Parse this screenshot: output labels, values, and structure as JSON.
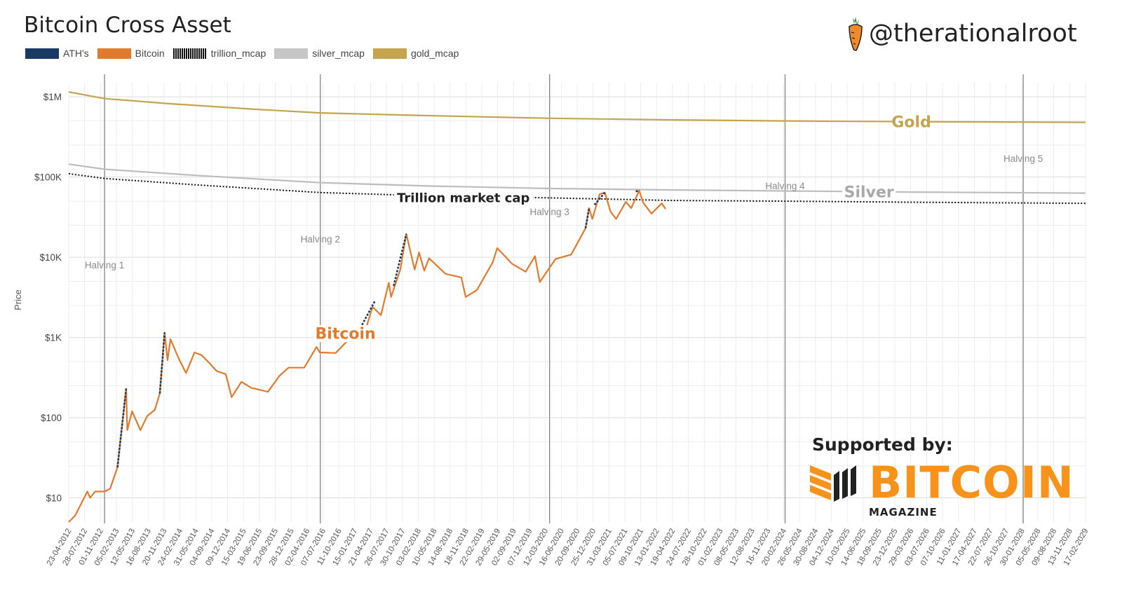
{
  "header": {
    "title": "Bitcoin Cross Asset",
    "handle": "@therationalroot"
  },
  "legend": [
    {
      "label": "ATH's",
      "color": "#1b3a63",
      "style": "solid"
    },
    {
      "label": "Bitcoin",
      "color": "#e07b2e",
      "style": "solid"
    },
    {
      "label": "trillion_mcap",
      "color": "#111111",
      "style": "dotted"
    },
    {
      "label": "silver_mcap",
      "color": "#c6c6c6",
      "style": "solid"
    },
    {
      "label": "gold_mcap",
      "color": "#c4a44e",
      "style": "solid"
    }
  ],
  "sponsor": {
    "supported_label": "Supported by:",
    "logo_word": "BITCOIN",
    "logo_sub": "MAGAZINE"
  },
  "colors": {
    "bitcoin": "#e07b2e",
    "ath": "#1b3a63",
    "gold": "#c4a44e",
    "silver": "#bdbdbd",
    "trillion": "#111111",
    "halving_line": "#8c8c8c",
    "grid": "#e8e8e8",
    "sponsor_orange": "#f7931a"
  },
  "chart_data": {
    "type": "line",
    "scale": "log",
    "ylabel": "Price",
    "ylim": [
      5,
      1500000
    ],
    "xlim": [
      "2012-04-23",
      "2029-05-01"
    ],
    "y_ticks": [
      {
        "value": 10,
        "label": "$10"
      },
      {
        "value": 100,
        "label": "$100"
      },
      {
        "value": 1000,
        "label": "$1K"
      },
      {
        "value": 10000,
        "label": "$10K"
      },
      {
        "value": 100000,
        "label": "$100K"
      },
      {
        "value": 1000000,
        "label": "$1M"
      }
    ],
    "x_tick_labels": [
      "23-04-2012",
      "28-07-2012",
      "01-11-2012",
      "05-02-2013",
      "12-05-2013",
      "16-08-2013",
      "20-11-2013",
      "24-02-2014",
      "31-05-2014",
      "04-09-2014",
      "09-12-2014",
      "15-03-2015",
      "19-06-2015",
      "23-09-2015",
      "28-12-2015",
      "02-04-2016",
      "07-07-2016",
      "11-10-2016",
      "15-01-2017",
      "21-04-2017",
      "26-07-2017",
      "30-10-2017",
      "03-02-2018",
      "10-05-2018",
      "14-08-2018",
      "18-11-2018",
      "22-02-2019",
      "29-05-2019",
      "02-09-2019",
      "07-12-2019",
      "12-03-2020",
      "16-06-2020",
      "20-09-2020",
      "25-12-2020",
      "31-03-2021",
      "05-07-2021",
      "09-10-2021",
      "13-01-2022",
      "19-04-2022",
      "24-07-2022",
      "28-10-2022",
      "01-02-2023",
      "08-05-2023",
      "12-08-2023",
      "16-11-2023",
      "20-02-2024",
      "26-05-2024",
      "30-08-2024",
      "04-12-2024",
      "10-03-2025",
      "14-06-2025",
      "18-09-2025",
      "23-12-2025",
      "29-03-2026",
      "03-07-2026",
      "07-10-2026",
      "11-01-2027",
      "17-04-2027",
      "22-07-2027",
      "26-10-2027",
      "30-01-2028",
      "05-05-2028",
      "09-08-2028",
      "13-11-2028",
      "17-02-2029"
    ],
    "halvings": [
      {
        "label": "Halving 1",
        "date": "2012-11-28"
      },
      {
        "label": "Halving 2",
        "date": "2016-07-09"
      },
      {
        "label": "Halving 3",
        "date": "2020-05-11"
      },
      {
        "label": "Halving 4",
        "date": "2024-04-20"
      },
      {
        "label": "Halving 5",
        "date": "2028-04-15"
      }
    ],
    "annotations": [
      {
        "text": "Gold",
        "series": "gold_mcap"
      },
      {
        "text": "Silver",
        "series": "silver_mcap"
      },
      {
        "text": "Trillion market cap",
        "series": "trillion_mcap"
      },
      {
        "text": "Bitcoin",
        "series": "Bitcoin"
      }
    ],
    "series": [
      {
        "name": "gold_mcap",
        "points": [
          [
            "2012-04-23",
            1150000
          ],
          [
            "2012-11-28",
            950000
          ],
          [
            "2014-01-01",
            820000
          ],
          [
            "2015-06-01",
            700000
          ],
          [
            "2016-07-09",
            630000
          ],
          [
            "2018-01-01",
            590000
          ],
          [
            "2020-05-11",
            540000
          ],
          [
            "2022-06-01",
            515000
          ],
          [
            "2024-04-20",
            500000
          ],
          [
            "2026-06-01",
            490000
          ],
          [
            "2029-05-01",
            480000
          ]
        ]
      },
      {
        "name": "silver_mcap",
        "points": [
          [
            "2012-04-23",
            145000
          ],
          [
            "2012-11-28",
            125000
          ],
          [
            "2014-06-01",
            105000
          ],
          [
            "2016-07-09",
            85000
          ],
          [
            "2018-06-01",
            77000
          ],
          [
            "2020-05-11",
            72000
          ],
          [
            "2022-06-01",
            69000
          ],
          [
            "2024-04-20",
            67000
          ],
          [
            "2026-06-01",
            65000
          ],
          [
            "2029-05-01",
            63000
          ]
        ]
      },
      {
        "name": "trillion_mcap",
        "points": [
          [
            "2012-04-23",
            110000
          ],
          [
            "2012-11-28",
            96000
          ],
          [
            "2014-06-01",
            80000
          ],
          [
            "2016-07-09",
            64000
          ],
          [
            "2018-06-01",
            58000
          ],
          [
            "2020-05-11",
            55000
          ],
          [
            "2022-06-01",
            51000
          ],
          [
            "2024-04-20",
            50000
          ],
          [
            "2026-06-01",
            48500
          ],
          [
            "2029-05-01",
            47000
          ]
        ]
      },
      {
        "name": "Bitcoin",
        "points": [
          [
            "2012-04-23",
            5
          ],
          [
            "2012-06-01",
            6
          ],
          [
            "2012-08-15",
            12
          ],
          [
            "2012-09-01",
            10
          ],
          [
            "2012-10-01",
            12
          ],
          [
            "2012-11-28",
            12
          ],
          [
            "2013-01-01",
            13
          ],
          [
            "2013-02-15",
            24
          ],
          [
            "2013-04-09",
            230
          ],
          [
            "2013-04-16",
            70
          ],
          [
            "2013-05-15",
            120
          ],
          [
            "2013-07-05",
            70
          ],
          [
            "2013-08-16",
            105
          ],
          [
            "2013-10-01",
            125
          ],
          [
            "2013-11-01",
            200
          ],
          [
            "2013-11-30",
            1150
          ],
          [
            "2013-12-18",
            520
          ],
          [
            "2014-01-05",
            950
          ],
          [
            "2014-02-24",
            550
          ],
          [
            "2014-04-10",
            360
          ],
          [
            "2014-06-01",
            650
          ],
          [
            "2014-07-15",
            600
          ],
          [
            "2014-09-04",
            470
          ],
          [
            "2014-10-15",
            380
          ],
          [
            "2014-12-09",
            350
          ],
          [
            "2015-01-14",
            180
          ],
          [
            "2015-03-15",
            280
          ],
          [
            "2015-05-15",
            235
          ],
          [
            "2015-08-24",
            210
          ],
          [
            "2015-11-01",
            330
          ],
          [
            "2015-12-28",
            420
          ],
          [
            "2016-04-02",
            420
          ],
          [
            "2016-06-16",
            760
          ],
          [
            "2016-07-07",
            650
          ],
          [
            "2016-10-11",
            640
          ],
          [
            "2016-12-20",
            900
          ],
          [
            "2017-01-05",
            1100
          ],
          [
            "2017-03-25",
            950
          ],
          [
            "2017-05-25",
            2400
          ],
          [
            "2017-07-15",
            1900
          ],
          [
            "2017-09-01",
            4800
          ],
          [
            "2017-09-15",
            3200
          ],
          [
            "2017-11-10",
            7000
          ],
          [
            "2017-12-17",
            19500
          ],
          [
            "2018-02-06",
            7000
          ],
          [
            "2018-03-05",
            11500
          ],
          [
            "2018-04-06",
            6800
          ],
          [
            "2018-05-05",
            9700
          ],
          [
            "2018-08-14",
            6200
          ],
          [
            "2018-11-18",
            5600
          ],
          [
            "2018-12-15",
            3200
          ],
          [
            "2019-02-22",
            3900
          ],
          [
            "2019-05-29",
            8600
          ],
          [
            "2019-06-26",
            13000
          ],
          [
            "2019-09-24",
            8300
          ],
          [
            "2019-12-17",
            6600
          ],
          [
            "2020-02-12",
            10300
          ],
          [
            "2020-03-12",
            4900
          ],
          [
            "2020-06-16",
            9500
          ],
          [
            "2020-09-20",
            10800
          ],
          [
            "2020-12-17",
            23000
          ],
          [
            "2021-01-08",
            41000
          ],
          [
            "2021-01-27",
            30000
          ],
          [
            "2021-03-13",
            61000
          ],
          [
            "2021-04-14",
            64000
          ],
          [
            "2021-05-19",
            37000
          ],
          [
            "2021-06-22",
            30000
          ],
          [
            "2021-08-20",
            49000
          ],
          [
            "2021-09-22",
            41000
          ],
          [
            "2021-11-10",
            68000
          ],
          [
            "2021-12-04",
            48000
          ],
          [
            "2022-01-24",
            35000
          ],
          [
            "2022-03-28",
            47000
          ],
          [
            "2022-04-20",
            40000
          ]
        ]
      },
      {
        "name": "ATH's",
        "segments": [
          [
            [
              "2013-02-15",
              24
            ],
            [
              "2013-04-09",
              230
            ]
          ],
          [
            [
              "2013-11-01",
              200
            ],
            [
              "2013-11-30",
              1150
            ]
          ],
          [
            [
              "2017-03-01",
              1200
            ],
            [
              "2017-06-10",
              2900
            ]
          ],
          [
            [
              "2017-10-01",
              4400
            ],
            [
              "2017-12-17",
              19500
            ]
          ],
          [
            [
              "2020-12-17",
              23000
            ],
            [
              "2021-01-08",
              41000
            ]
          ],
          [
            [
              "2021-02-10",
              45000
            ],
            [
              "2021-04-14",
              64000
            ]
          ],
          [
            [
              "2021-10-20",
              66000
            ],
            [
              "2021-11-10",
              68000
            ]
          ]
        ]
      }
    ]
  }
}
